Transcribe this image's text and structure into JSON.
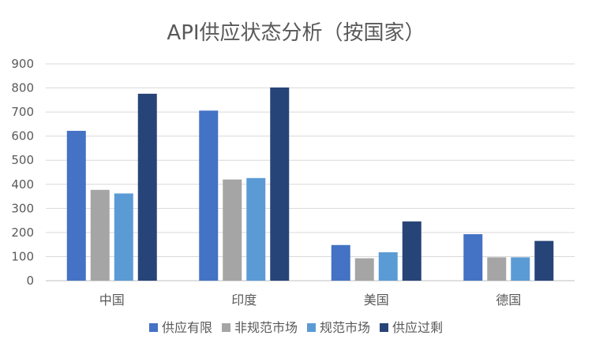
{
  "chart_data": {
    "type": "bar",
    "title": "API供应状态分析（按国家）",
    "xlabel": "",
    "ylabel": "",
    "ylim": [
      0,
      900
    ],
    "y_ticks": [
      0,
      100,
      200,
      300,
      400,
      500,
      600,
      700,
      800,
      900
    ],
    "categories": [
      "中国",
      "印度",
      "美国",
      "德国"
    ],
    "series": [
      {
        "name": "供应有限",
        "color": "#4472c4",
        "values": [
          622,
          706,
          148,
          193
        ]
      },
      {
        "name": "非规范市场",
        "color": "#a5a5a5",
        "values": [
          377,
          420,
          93,
          97
        ]
      },
      {
        "name": "规范市场",
        "color": "#5b9bd5",
        "values": [
          362,
          426,
          118,
          97
        ]
      },
      {
        "name": "供应过剩",
        "color": "#264478",
        "values": [
          776,
          802,
          246,
          165
        ]
      }
    ],
    "grid": true,
    "legend_position": "bottom"
  }
}
